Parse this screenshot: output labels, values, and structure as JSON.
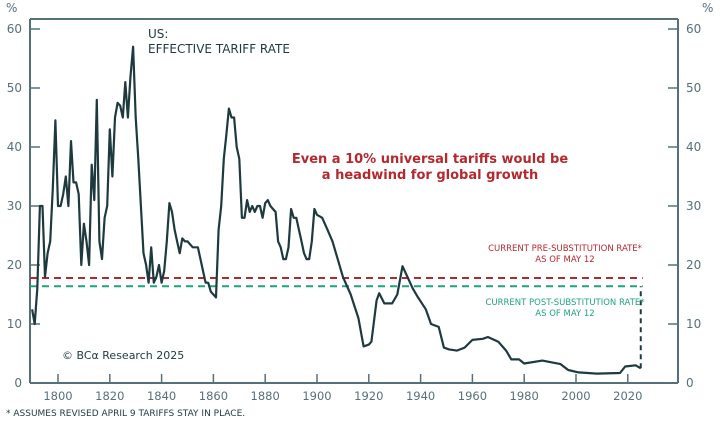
{
  "chart_data": {
    "type": "line",
    "title": "US:",
    "subtitle": "EFFECTIVE TARIFF RATE",
    "ylabel_left": "%",
    "ylabel_right": "%",
    "ylim": [
      0,
      60
    ],
    "yticks": [
      0,
      10,
      20,
      30,
      40,
      50,
      60
    ],
    "xticks": [
      1800,
      1820,
      1840,
      1860,
      1880,
      1900,
      1920,
      1940,
      1960,
      1980,
      2000,
      2020
    ],
    "grid": false,
    "series": [
      {
        "color": "#1e3a3f",
        "x": [
          1790,
          1791,
          1792,
          1793,
          1794,
          1795,
          1796,
          1797,
          1798,
          1799,
          1800,
          1801,
          1802,
          1803,
          1804,
          1805,
          1806,
          1807,
          1808,
          1809,
          1810,
          1811,
          1812,
          1813,
          1814,
          1815,
          1816,
          1817,
          1818,
          1819,
          1820,
          1821,
          1822,
          1823,
          1824,
          1825,
          1826,
          1827,
          1828,
          1829,
          1830,
          1831,
          1832,
          1833,
          1834,
          1835,
          1836,
          1837,
          1838,
          1839,
          1840,
          1841,
          1842,
          1843,
          1844,
          1845,
          1846,
          1847,
          1848,
          1849,
          1850,
          1852,
          1854,
          1856,
          1857,
          1858,
          1859,
          1860,
          1861,
          1862,
          1863,
          1864,
          1865,
          1866,
          1867,
          1868,
          1869,
          1870,
          1871,
          1872,
          1873,
          1874,
          1875,
          1876,
          1877,
          1878,
          1879,
          1880,
          1881,
          1882,
          1883,
          1884,
          1885,
          1886,
          1887,
          1888,
          1889,
          1890,
          1891,
          1892,
          1893,
          1894,
          1895,
          1896,
          1897,
          1898,
          1899,
          1900,
          1902,
          1904,
          1906,
          1908,
          1910,
          1913,
          1916,
          1918,
          1920,
          1921,
          1923,
          1924,
          1926,
          1929,
          1931,
          1933,
          1937,
          1939,
          1942,
          1944,
          1947,
          1949,
          1951,
          1954,
          1957,
          1960,
          1964,
          1966,
          1970,
          1973,
          1975,
          1978,
          1980,
          1987,
          1994,
          1997,
          2001,
          2008,
          2017,
          2019,
          2023,
          2025
        ],
        "y": [
          12.5,
          10,
          16,
          30,
          30,
          18,
          22,
          24,
          33,
          44.5,
          30,
          30,
          32,
          35,
          30,
          41,
          34,
          34,
          32,
          20,
          27,
          24,
          20,
          37,
          31,
          48,
          24,
          21,
          28,
          30,
          43,
          35,
          45,
          47.5,
          47,
          45,
          51,
          45,
          52,
          57,
          45,
          38,
          30,
          22,
          20,
          17,
          23,
          17,
          18,
          20,
          17,
          19,
          24,
          30.5,
          29,
          26,
          24,
          22,
          24.5,
          24,
          24,
          23,
          23,
          19,
          17,
          17,
          15.5,
          15,
          14.5,
          26,
          30,
          38,
          42,
          46.5,
          45,
          45,
          40,
          38,
          28,
          28,
          31,
          29,
          30,
          29,
          30,
          30,
          28,
          30.5,
          31,
          30,
          29.5,
          29,
          24,
          23,
          21,
          21,
          23,
          29.5,
          28,
          28,
          26,
          24,
          22,
          21,
          21,
          24,
          29.5,
          28.5,
          28,
          26,
          24,
          21,
          18,
          15,
          11,
          6.2,
          6.5,
          7,
          14,
          15.2,
          13.5,
          13.5,
          15,
          19.8,
          16,
          14.5,
          12.5,
          10,
          9.5,
          6,
          5.7,
          5.5,
          6,
          7.3,
          7.5,
          7.8,
          7,
          5.5,
          4,
          4,
          3.3,
          3.8,
          3.2,
          2.2,
          1.8,
          1.6,
          1.7,
          2.8,
          3,
          2.5
        ]
      }
    ],
    "reference_lines": [
      {
        "label_line1": "CURRENT PRE-SUBSTITUTION RATE*",
        "label_line2": "AS OF MAY 12",
        "value": 17.8,
        "color": "#b5282e"
      },
      {
        "label_line1": "CURRENT POST-SUBSTITUTION RATE*",
        "label_line2": "AS OF MAY 12",
        "value": 16.4,
        "color": "#1fa37f"
      }
    ],
    "connector": {
      "year": 2025,
      "from": 2.5,
      "to": 16.4,
      "color": "#1e3a3f"
    },
    "annotation": {
      "line1": "Even a 10% universal tariffs would be",
      "line2": "a headwind for global growth",
      "color": "#b5282e"
    },
    "watermark": "© BCα Research 2025",
    "footnote": "* ASSUMES REVISED APRIL 9 TARIFFS STAY IN PLACE."
  }
}
